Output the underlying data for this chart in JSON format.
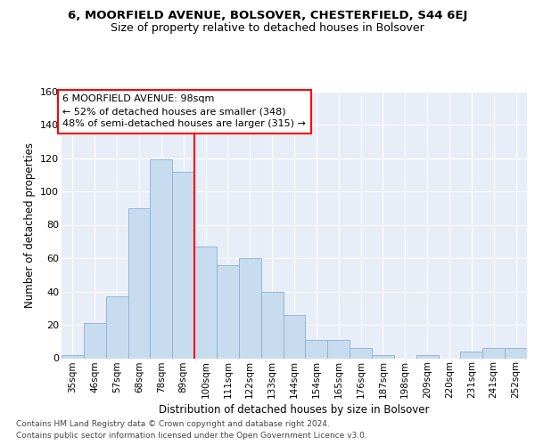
{
  "title1": "6, MOORFIELD AVENUE, BOLSOVER, CHESTERFIELD, S44 6EJ",
  "title2": "Size of property relative to detached houses in Bolsover",
  "xlabel": "Distribution of detached houses by size in Bolsover",
  "ylabel": "Number of detached properties",
  "categories": [
    "35sqm",
    "46sqm",
    "57sqm",
    "68sqm",
    "78sqm",
    "89sqm",
    "100sqm",
    "111sqm",
    "122sqm",
    "133sqm",
    "144sqm",
    "154sqm",
    "165sqm",
    "176sqm",
    "187sqm",
    "198sqm",
    "209sqm",
    "220sqm",
    "231sqm",
    "241sqm",
    "252sqm"
  ],
  "values": [
    2,
    21,
    37,
    90,
    119,
    112,
    67,
    56,
    60,
    40,
    26,
    11,
    11,
    6,
    2,
    0,
    2,
    0,
    4,
    6,
    6
  ],
  "bar_color": "#c8dcf0",
  "bar_edge_color": "#8ab0d0",
  "red_line_index": 6,
  "annotation_lines": [
    "6 MOORFIELD AVENUE: 98sqm",
    "← 52% of detached houses are smaller (348)",
    "48% of semi-detached houses are larger (315) →"
  ],
  "ylim": [
    0,
    160
  ],
  "yticks": [
    0,
    20,
    40,
    60,
    80,
    100,
    120,
    140,
    160
  ],
  "footer_line1": "Contains HM Land Registry data © Crown copyright and database right 2024.",
  "footer_line2": "Contains public sector information licensed under the Open Government Licence v3.0.",
  "plot_bg_color": "#e8eef8",
  "grid_color": "#ffffff"
}
